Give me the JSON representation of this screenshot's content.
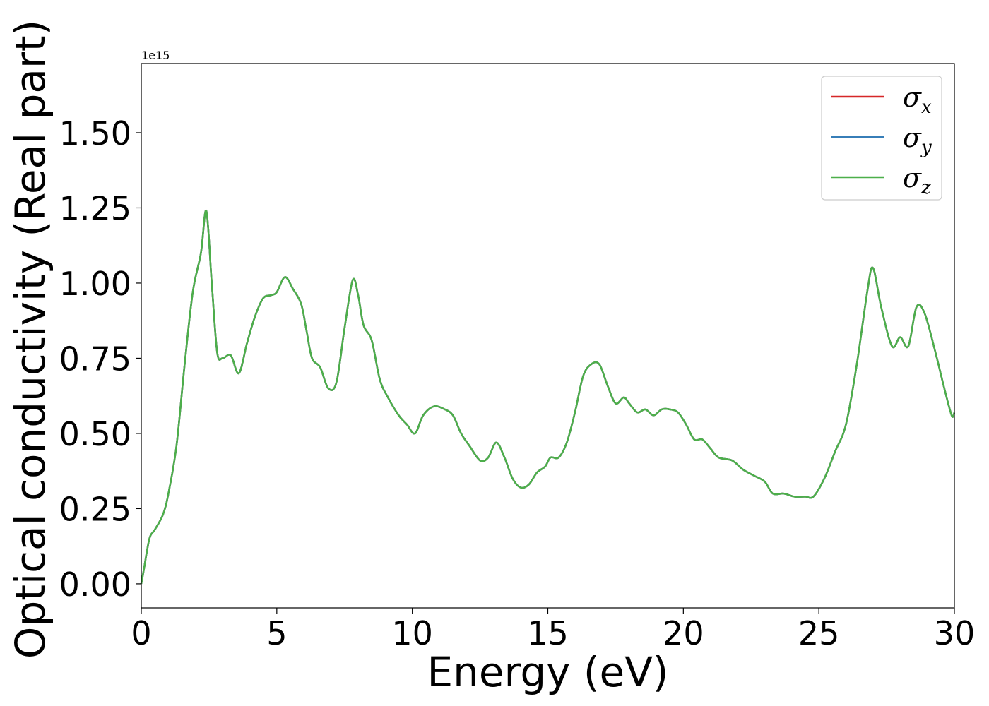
{
  "chart_data": {
    "type": "line",
    "title": "",
    "xlabel": "Energy (eV)",
    "ylabel": "Optical conductivity (Real part)",
    "y_offset_label": "1e15",
    "xlim": [
      0,
      30
    ],
    "ylim": [
      -0.08,
      1.73
    ],
    "x_ticks": [
      0,
      5,
      10,
      15,
      20,
      25,
      30
    ],
    "x_tick_labels": [
      "0",
      "5",
      "10",
      "15",
      "20",
      "25",
      "30"
    ],
    "y_ticks": [
      0.0,
      0.25,
      0.5,
      0.75,
      1.0,
      1.25,
      1.5
    ],
    "y_tick_labels": [
      "0.00",
      "0.25",
      "0.50",
      "0.75",
      "1.00",
      "1.25",
      "1.50"
    ],
    "grid": false,
    "legend_position": "top-right",
    "x": [
      0.0,
      0.1,
      0.3,
      0.5,
      0.8,
      1.0,
      1.3,
      1.6,
      1.9,
      2.2,
      2.4,
      2.6,
      2.8,
      3.0,
      3.3,
      3.6,
      3.9,
      4.2,
      4.5,
      4.8,
      5.0,
      5.3,
      5.6,
      5.9,
      6.1,
      6.3,
      6.6,
      6.9,
      7.2,
      7.5,
      7.8,
      8.0,
      8.2,
      8.5,
      8.8,
      9.1,
      9.5,
      9.8,
      10.1,
      10.4,
      10.8,
      11.2,
      11.5,
      11.8,
      12.1,
      12.5,
      12.8,
      13.1,
      13.4,
      13.7,
      14.0,
      14.3,
      14.6,
      14.9,
      15.1,
      15.4,
      15.7,
      16.0,
      16.3,
      16.6,
      16.9,
      17.2,
      17.5,
      17.8,
      18.0,
      18.3,
      18.6,
      18.9,
      19.2,
      19.5,
      19.8,
      20.1,
      20.4,
      20.7,
      21.0,
      21.3,
      21.8,
      22.2,
      22.6,
      23.0,
      23.3,
      23.7,
      24.1,
      24.5,
      24.8,
      25.2,
      25.6,
      26.0,
      26.4,
      26.8,
      27.0,
      27.3,
      27.7,
      28.0,
      28.3,
      28.6,
      28.9,
      29.3,
      29.6,
      29.9,
      30.0
    ],
    "series": [
      {
        "name": "σx",
        "color": "#d62728",
        "values": [
          0.0,
          0.05,
          0.15,
          0.18,
          0.23,
          0.3,
          0.46,
          0.73,
          0.97,
          1.1,
          1.24,
          1.0,
          0.77,
          0.75,
          0.76,
          0.7,
          0.8,
          0.89,
          0.95,
          0.96,
          0.97,
          1.02,
          0.98,
          0.93,
          0.84,
          0.75,
          0.72,
          0.65,
          0.67,
          0.85,
          1.01,
          0.96,
          0.86,
          0.81,
          0.68,
          0.62,
          0.56,
          0.53,
          0.5,
          0.56,
          0.59,
          0.58,
          0.56,
          0.5,
          0.46,
          0.41,
          0.42,
          0.47,
          0.42,
          0.35,
          0.32,
          0.33,
          0.37,
          0.39,
          0.42,
          0.42,
          0.47,
          0.57,
          0.69,
          0.73,
          0.73,
          0.66,
          0.6,
          0.62,
          0.6,
          0.57,
          0.58,
          0.56,
          0.58,
          0.58,
          0.57,
          0.53,
          0.48,
          0.48,
          0.45,
          0.42,
          0.41,
          0.38,
          0.36,
          0.34,
          0.3,
          0.3,
          0.29,
          0.29,
          0.29,
          0.35,
          0.44,
          0.53,
          0.73,
          0.98,
          1.05,
          0.92,
          0.79,
          0.82,
          0.79,
          0.92,
          0.9,
          0.77,
          0.66,
          0.56,
          0.57
        ]
      },
      {
        "name": "σy",
        "color": "#377eb8",
        "values": [
          0.0,
          0.05,
          0.15,
          0.18,
          0.23,
          0.3,
          0.46,
          0.73,
          0.97,
          1.1,
          1.24,
          1.0,
          0.77,
          0.75,
          0.76,
          0.7,
          0.8,
          0.89,
          0.95,
          0.96,
          0.97,
          1.02,
          0.98,
          0.93,
          0.84,
          0.75,
          0.72,
          0.65,
          0.67,
          0.85,
          1.01,
          0.96,
          0.86,
          0.81,
          0.68,
          0.62,
          0.56,
          0.53,
          0.5,
          0.56,
          0.59,
          0.58,
          0.56,
          0.5,
          0.46,
          0.41,
          0.42,
          0.47,
          0.42,
          0.35,
          0.32,
          0.33,
          0.37,
          0.39,
          0.42,
          0.42,
          0.47,
          0.57,
          0.69,
          0.73,
          0.73,
          0.66,
          0.6,
          0.62,
          0.6,
          0.57,
          0.58,
          0.56,
          0.58,
          0.58,
          0.57,
          0.53,
          0.48,
          0.48,
          0.45,
          0.42,
          0.41,
          0.38,
          0.36,
          0.34,
          0.3,
          0.3,
          0.29,
          0.29,
          0.29,
          0.35,
          0.44,
          0.53,
          0.73,
          0.98,
          1.05,
          0.92,
          0.79,
          0.82,
          0.79,
          0.92,
          0.9,
          0.77,
          0.66,
          0.56,
          0.57
        ]
      },
      {
        "name": "σz",
        "color": "#4daf4a",
        "values": [
          0.0,
          0.05,
          0.15,
          0.18,
          0.23,
          0.3,
          0.46,
          0.73,
          0.97,
          1.1,
          1.24,
          1.0,
          0.77,
          0.75,
          0.76,
          0.7,
          0.8,
          0.89,
          0.95,
          0.96,
          0.97,
          1.02,
          0.98,
          0.93,
          0.84,
          0.75,
          0.72,
          0.65,
          0.67,
          0.85,
          1.01,
          0.96,
          0.86,
          0.81,
          0.68,
          0.62,
          0.56,
          0.53,
          0.5,
          0.56,
          0.59,
          0.58,
          0.56,
          0.5,
          0.46,
          0.41,
          0.42,
          0.47,
          0.42,
          0.35,
          0.32,
          0.33,
          0.37,
          0.39,
          0.42,
          0.42,
          0.47,
          0.57,
          0.69,
          0.73,
          0.73,
          0.66,
          0.6,
          0.62,
          0.6,
          0.57,
          0.58,
          0.56,
          0.58,
          0.58,
          0.57,
          0.53,
          0.48,
          0.48,
          0.45,
          0.42,
          0.41,
          0.38,
          0.36,
          0.34,
          0.3,
          0.3,
          0.29,
          0.29,
          0.29,
          0.35,
          0.44,
          0.53,
          0.73,
          0.98,
          1.05,
          0.92,
          0.79,
          0.82,
          0.79,
          0.92,
          0.9,
          0.77,
          0.66,
          0.56,
          0.57
        ]
      }
    ],
    "legend": [
      {
        "symbol": "σ",
        "sub": "x",
        "color": "#d62728"
      },
      {
        "symbol": "σ",
        "sub": "y",
        "color": "#377eb8"
      },
      {
        "symbol": "σ",
        "sub": "z",
        "color": "#4daf4a"
      }
    ]
  }
}
